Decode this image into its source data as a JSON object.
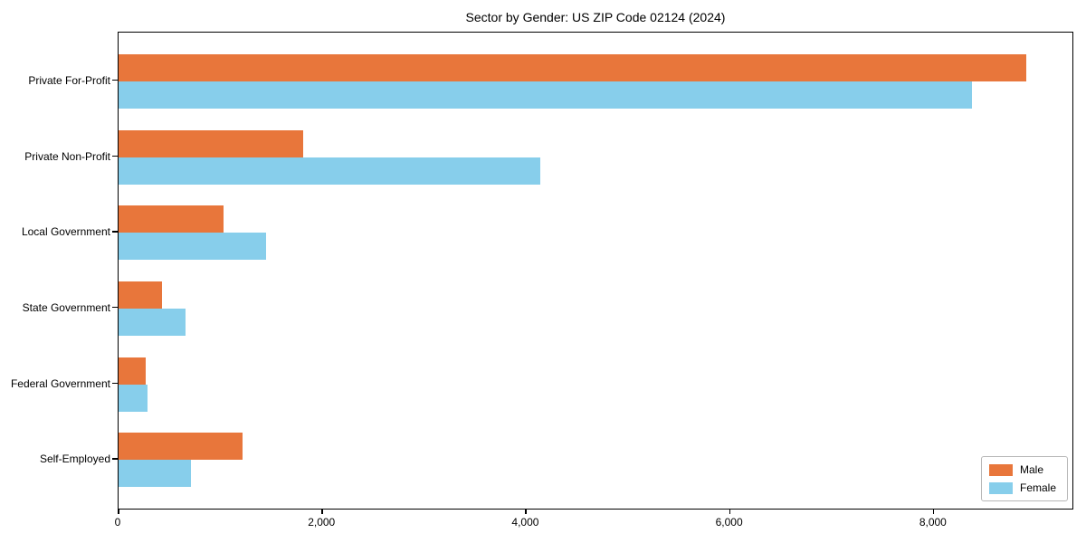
{
  "chart_data": {
    "type": "bar",
    "orientation": "horizontal",
    "title": "Sector by Gender: US ZIP Code 02124 (2024)",
    "categories": [
      "Private For-Profit",
      "Private Non-Profit",
      "Local Government",
      "State Government",
      "Federal Government",
      "Self-Employed"
    ],
    "categories_order": "top-to-bottom",
    "series": [
      {
        "name": "Male",
        "color": "#E8763B",
        "values": [
          8910,
          1810,
          1030,
          430,
          270,
          1220
        ]
      },
      {
        "name": "Female",
        "color": "#87CEEB",
        "values": [
          8370,
          4140,
          1450,
          660,
          280,
          710
        ]
      }
    ],
    "xlabel": "",
    "ylabel": "",
    "xlim": [
      0,
      9360
    ],
    "xticks": [
      0,
      2000,
      4000,
      6000,
      8000
    ],
    "xtick_labels": [
      "0",
      "2,000",
      "4,000",
      "6,000",
      "8,000"
    ],
    "grid": false,
    "legend": {
      "position": "lower right",
      "entries": [
        "Male",
        "Female"
      ]
    }
  }
}
